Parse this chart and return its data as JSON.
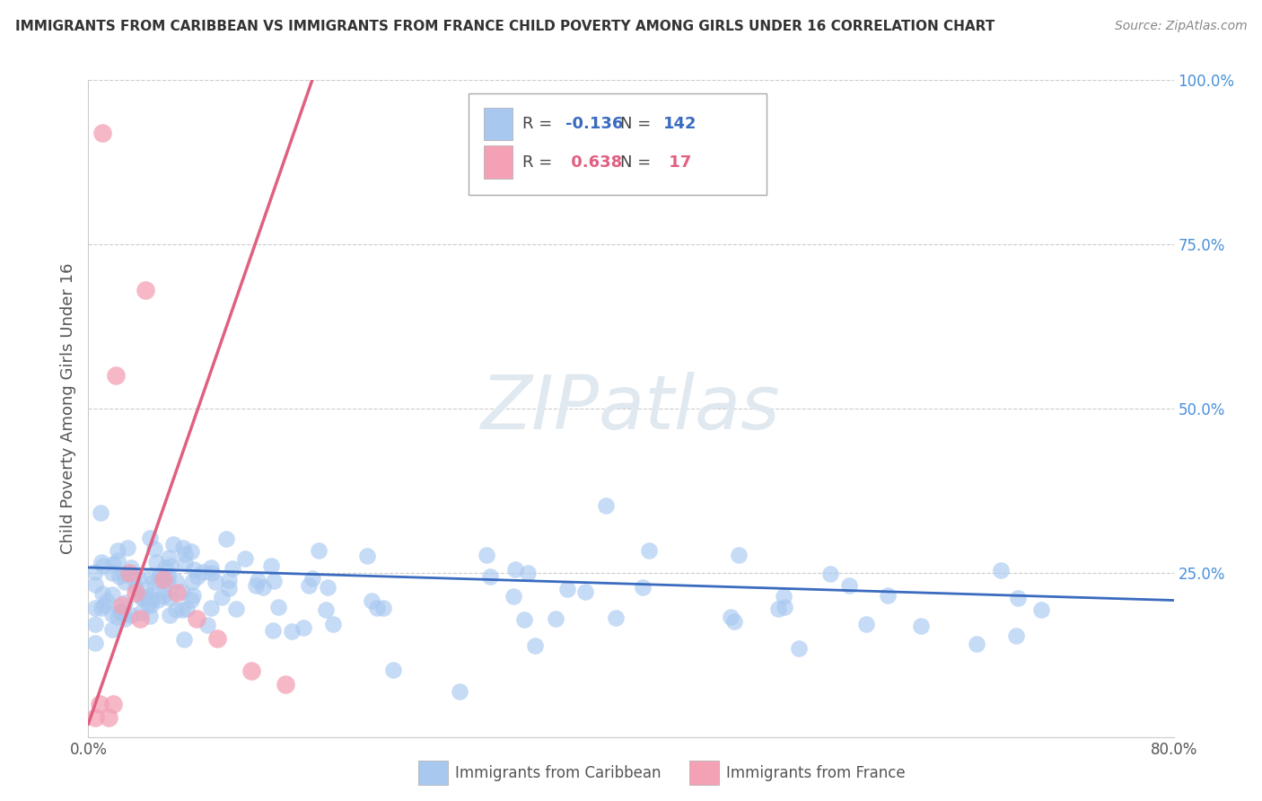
{
  "title": "IMMIGRANTS FROM CARIBBEAN VS IMMIGRANTS FROM FRANCE CHILD POVERTY AMONG GIRLS UNDER 16 CORRELATION CHART",
  "source": "Source: ZipAtlas.com",
  "ylabel": "Child Poverty Among Girls Under 16",
  "xlim": [
    0.0,
    0.8
  ],
  "ylim": [
    0.0,
    1.0
  ],
  "xticks": [
    0.0,
    0.2,
    0.4,
    0.6,
    0.8
  ],
  "xtick_labels": [
    "0.0%",
    "",
    "",
    "",
    "80.0%"
  ],
  "ytick_labels": [
    "",
    "25.0%",
    "50.0%",
    "75.0%",
    "100.0%"
  ],
  "yticks": [
    0.0,
    0.25,
    0.5,
    0.75,
    1.0
  ],
  "blue_R": -0.136,
  "blue_N": 142,
  "pink_R": 0.638,
  "pink_N": 17,
  "blue_color": "#a8c8f0",
  "pink_color": "#f4a0b5",
  "blue_line_color": "#3a6bbf",
  "pink_line_color": "#e06080",
  "watermark_color": "#e0e8f0",
  "legend_label_blue": "Immigrants from Caribbean",
  "legend_label_pink": "Immigrants from France",
  "blue_trend_x": [
    0.0,
    0.8
  ],
  "blue_trend_y": [
    0.258,
    0.208
  ],
  "pink_trend_x": [
    0.0,
    0.165
  ],
  "pink_trend_y": [
    0.02,
    1.0
  ],
  "blue_seed": 12,
  "pink_seed": 7
}
